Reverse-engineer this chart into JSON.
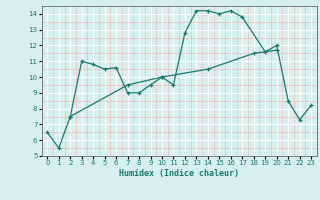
{
  "line1_x": [
    0,
    1,
    2,
    3,
    4,
    5,
    6,
    7,
    8,
    9,
    10,
    11,
    12,
    13,
    14,
    15,
    16,
    17,
    19,
    20,
    21,
    22,
    23
  ],
  "line1_y": [
    6.5,
    5.5,
    7.5,
    11.0,
    10.8,
    10.5,
    10.6,
    9.0,
    9.0,
    9.5,
    10.0,
    9.5,
    12.8,
    14.2,
    14.2,
    14.0,
    14.2,
    13.8,
    11.6,
    12.0,
    8.5,
    7.3,
    8.2
  ],
  "line2_x": [
    2,
    7,
    10,
    14,
    18,
    20
  ],
  "line2_y": [
    7.5,
    9.5,
    10.0,
    10.5,
    11.5,
    11.7
  ],
  "color": "#1a7a6e",
  "bg_color": "#d6f0ee",
  "grid_major_color": "#ffffff",
  "grid_minor_color": "#f0b8b8",
  "xlabel": "Humidex (Indice chaleur)",
  "ylim": [
    5,
    14.5
  ],
  "xlim": [
    -0.5,
    23.5
  ],
  "yticks": [
    5,
    6,
    7,
    8,
    9,
    10,
    11,
    12,
    13,
    14
  ],
  "xticks": [
    0,
    1,
    2,
    3,
    4,
    5,
    6,
    7,
    8,
    9,
    10,
    11,
    12,
    13,
    14,
    15,
    16,
    17,
    18,
    19,
    20,
    21,
    22,
    23
  ]
}
